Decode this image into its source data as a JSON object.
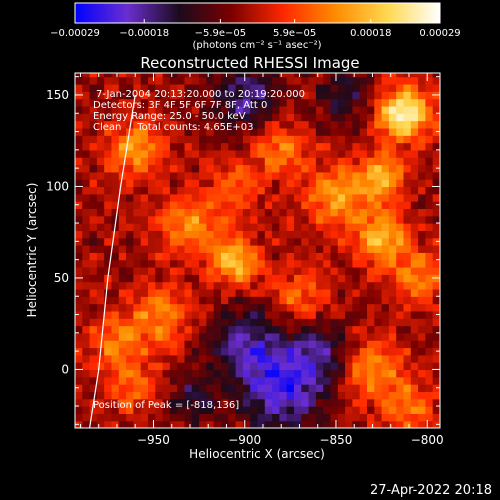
{
  "chart_data": {
    "type": "heatmap",
    "title": "Reconstructed RHESSI Image",
    "xlabel": "Heliocentric X (arcsec)",
    "ylabel": "Heliocentric Y (arcsec)",
    "xlim": [
      -993,
      -793
    ],
    "ylim": [
      -32,
      162
    ],
    "x_ticks": [
      -950,
      -900,
      -850,
      -800
    ],
    "y_ticks": [
      0,
      50,
      100,
      150
    ],
    "x_tick_labels": [
      "−950",
      "−900",
      "−850",
      "−800"
    ],
    "y_tick_labels": [
      "0",
      "50",
      "100",
      "150"
    ],
    "colorbar": {
      "min": -0.00029,
      "max": 0.00029,
      "ticks": [
        -0.00029,
        -0.00018,
        -5.9e-05,
        5.9e-05,
        0.00018,
        0.00029
      ],
      "tick_labels": [
        "−0.00029",
        "−0.00018",
        "−5.9e−05",
        "5.9e−05",
        "0.00018",
        "0.00029"
      ],
      "unit_label": "(photons cm⁻² s⁻¹ asec⁻²)",
      "colors": [
        "#0000ff",
        "#6a2ed0",
        "#1c0a1c",
        "#7a0000",
        "#ff2800",
        "#ff8c00",
        "#ffd850",
        "#ffffff"
      ]
    },
    "annotations": {
      "time_range": "7-Jan-2004 20:13:20.000 to 20:19:20.000",
      "detectors": "Detectors: 3F 4F 5F 6F 7F 8F, Att 0",
      "energy_range": "Energy Range: 25.0 - 50.0 keV",
      "method": "Clean     Total counts: 4.65E+03",
      "peak": "Position of Peak = [-818,136]"
    },
    "peak_position": [
      -818,
      136
    ],
    "limb_curve": [
      [
        -960,
        150
      ],
      [
        -968,
        100
      ],
      [
        -975,
        50
      ],
      [
        -980,
        0
      ],
      [
        -985,
        -32
      ]
    ],
    "hot_spots": [
      {
        "x": -813,
        "y": 140,
        "strength": 1.0,
        "sigma": 10
      },
      {
        "x": -825,
        "y": 105,
        "strength": 0.65,
        "sigma": 9
      },
      {
        "x": -825,
        "y": 72,
        "strength": 0.7,
        "sigma": 10
      },
      {
        "x": -905,
        "y": 60,
        "strength": 0.75,
        "sigma": 9
      },
      {
        "x": -930,
        "y": 80,
        "strength": 0.5,
        "sigma": 12
      },
      {
        "x": -960,
        "y": 120,
        "strength": 0.55,
        "sigma": 11
      },
      {
        "x": -945,
        "y": 30,
        "strength": 0.45,
        "sigma": 12
      },
      {
        "x": -850,
        "y": 95,
        "strength": 0.55,
        "sigma": 12
      },
      {
        "x": -880,
        "y": 120,
        "strength": 0.45,
        "sigma": 10
      },
      {
        "x": -870,
        "y": 40,
        "strength": 0.4,
        "sigma": 11
      },
      {
        "x": -970,
        "y": 15,
        "strength": 0.4,
        "sigma": 12
      },
      {
        "x": -805,
        "y": 50,
        "strength": 0.45,
        "sigma": 10
      },
      {
        "x": -830,
        "y": 0,
        "strength": 0.5,
        "sigma": 12
      },
      {
        "x": -810,
        "y": -20,
        "strength": 0.4,
        "sigma": 10
      },
      {
        "x": -960,
        "y": -10,
        "strength": 0.35,
        "sigma": 10
      },
      {
        "x": -905,
        "y": 100,
        "strength": 0.35,
        "sigma": 10
      }
    ],
    "cool_spots": [
      {
        "x": -900,
        "y": 150,
        "strength": 0.55,
        "sigma": 12
      },
      {
        "x": -880,
        "y": -10,
        "strength": 0.7,
        "sigma": 16
      },
      {
        "x": -900,
        "y": 15,
        "strength": 0.5,
        "sigma": 14
      },
      {
        "x": -860,
        "y": 10,
        "strength": 0.45,
        "sigma": 12
      },
      {
        "x": -845,
        "y": 150,
        "strength": 0.4,
        "sigma": 10
      },
      {
        "x": -930,
        "y": -15,
        "strength": 0.35,
        "sigma": 10
      }
    ]
  },
  "footer": {
    "timestamp": "27-Apr-2022 20:18"
  }
}
